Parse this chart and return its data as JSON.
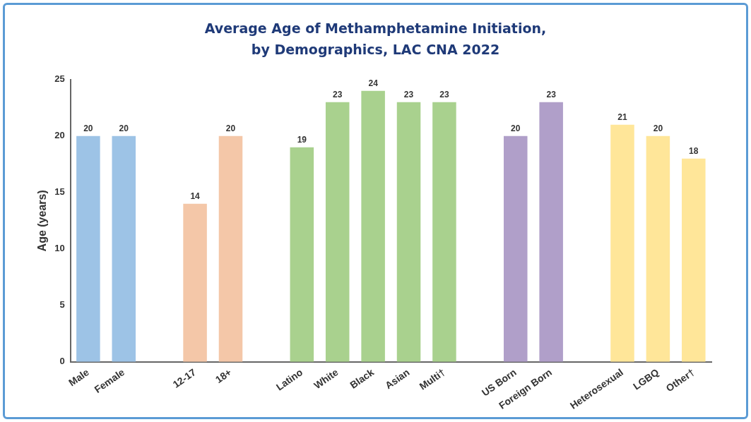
{
  "chart_data": {
    "type": "bar",
    "title": "Average Age of Methamphetamine Initiation,\nby Demographics, LAC CNA 2022",
    "ylabel": "Age (years)",
    "categories": [
      "Male",
      "Female",
      null,
      "12-17",
      "18+",
      null,
      "Latino",
      "White",
      "Black",
      "Asian",
      "Multi†",
      null,
      "US Born",
      "Foreign Born",
      null,
      "Heterosexual",
      "LGBQ",
      "Other†"
    ],
    "values": [
      20,
      20,
      null,
      14,
      20,
      null,
      19,
      23,
      24,
      23,
      23,
      null,
      20,
      23,
      null,
      21,
      20,
      18
    ],
    "colors": [
      "#9dc3e6",
      "#9dc3e6",
      null,
      "#f4c7a8",
      "#f4c7a8",
      null,
      "#a9d18e",
      "#a9d18e",
      "#a9d18e",
      "#a9d18e",
      "#a9d18e",
      null,
      "#b09fc9",
      "#b09fc9",
      null,
      "#ffe699",
      "#ffe699",
      "#ffe699"
    ],
    "ylim": [
      0,
      25
    ],
    "yticks": [
      0,
      5,
      10,
      15,
      20,
      25
    ],
    "grid": false,
    "legend": false,
    "data_labels": true
  }
}
